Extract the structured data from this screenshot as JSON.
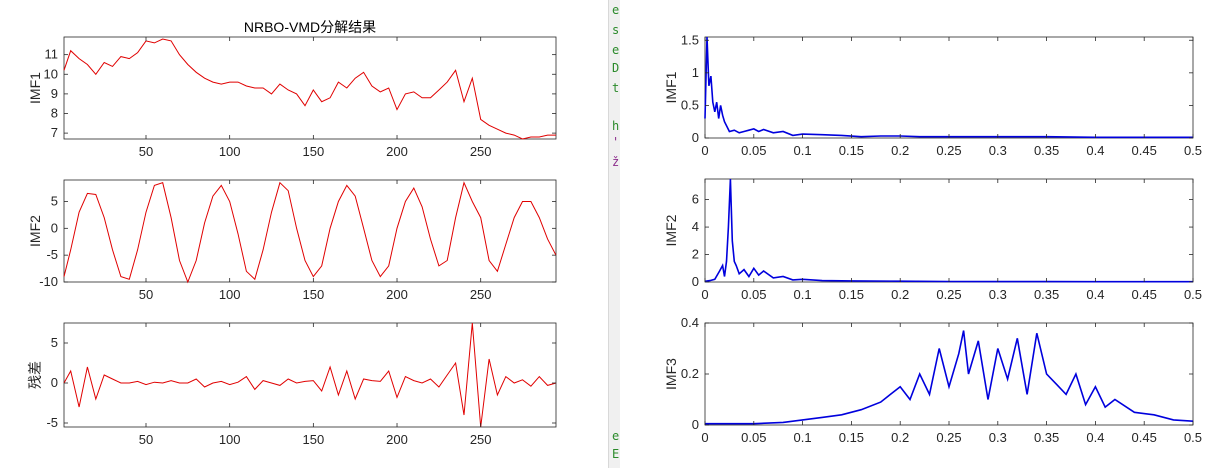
{
  "left_window": {
    "title": "NRBO-VMD分解结果",
    "panels": [
      {
        "ylabel": "IMF1",
        "yticks": [
          "7",
          "8",
          "9",
          "10",
          "11"
        ],
        "xticks": [
          "50",
          "100",
          "150",
          "200",
          "250"
        ]
      },
      {
        "ylabel": "IMF2",
        "yticks": [
          "-10",
          "-5",
          "0",
          "5"
        ],
        "xticks": [
          "50",
          "100",
          "150",
          "200",
          "250"
        ]
      },
      {
        "ylabel": "残差",
        "yticks": [
          "-5",
          "0",
          "5"
        ],
        "xticks": [
          "50",
          "100",
          "150",
          "200",
          "250"
        ]
      }
    ]
  },
  "right_window": {
    "panels": [
      {
        "ylabel": "IMF1",
        "yticks": [
          "0",
          "0.5",
          "1",
          "1.5"
        ],
        "xticks": [
          "0",
          "0.05",
          "0.1",
          "0.15",
          "0.2",
          "0.25",
          "0.3",
          "0.35",
          "0.4",
          "0.45",
          "0.5"
        ]
      },
      {
        "ylabel": "IMF2",
        "yticks": [
          "0",
          "2",
          "4",
          "6"
        ],
        "xticks": [
          "0",
          "0.05",
          "0.1",
          "0.15",
          "0.2",
          "0.25",
          "0.3",
          "0.35",
          "0.4",
          "0.45",
          "0.5"
        ]
      },
      {
        "ylabel": "IMF3",
        "yticks": [
          "0",
          "0.2",
          "0.4"
        ],
        "xticks": [
          "0",
          "0.05",
          "0.1",
          "0.15",
          "0.2",
          "0.25",
          "0.3",
          "0.35",
          "0.4",
          "0.45",
          "0.5"
        ]
      }
    ]
  },
  "background_window_glyphs": [
    "e",
    "s",
    "e",
    "D",
    "t",
    "h",
    "'",
    "ž",
    "e",
    "E"
  ],
  "chart_data": [
    {
      "type": "line",
      "title": "NRBO-VMD分解结果",
      "ylabel": "IMF1",
      "color": "#e00000",
      "xlim": [
        1,
        295
      ],
      "ylim": [
        6.7,
        11.9
      ],
      "x": [
        1,
        5,
        10,
        15,
        20,
        25,
        30,
        35,
        40,
        45,
        50,
        55,
        60,
        65,
        70,
        75,
        80,
        85,
        90,
        95,
        100,
        105,
        110,
        115,
        120,
        125,
        130,
        135,
        140,
        145,
        150,
        155,
        160,
        165,
        170,
        175,
        180,
        185,
        190,
        195,
        200,
        205,
        210,
        215,
        220,
        225,
        230,
        235,
        240,
        245,
        250,
        255,
        260,
        265,
        270,
        275,
        280,
        285,
        290,
        295
      ],
      "y": [
        10.2,
        11.2,
        10.8,
        10.5,
        10.0,
        10.6,
        10.4,
        10.9,
        10.8,
        11.1,
        11.7,
        11.6,
        11.8,
        11.7,
        11.0,
        10.5,
        10.1,
        9.8,
        9.6,
        9.5,
        9.6,
        9.6,
        9.4,
        9.3,
        9.3,
        9.0,
        9.5,
        9.2,
        9.0,
        8.4,
        9.2,
        8.6,
        8.8,
        9.6,
        9.3,
        9.8,
        10.1,
        9.4,
        9.1,
        9.3,
        8.2,
        9.0,
        9.1,
        8.8,
        8.8,
        9.2,
        9.6,
        10.2,
        8.6,
        9.8,
        7.7,
        7.4,
        7.2,
        7.0,
        6.9,
        6.7,
        6.8,
        6.8,
        6.9,
        6.9
      ]
    },
    {
      "type": "line",
      "ylabel": "IMF2",
      "color": "#e00000",
      "xlim": [
        1,
        295
      ],
      "ylim": [
        -10,
        9
      ],
      "x": [
        1,
        5,
        10,
        15,
        20,
        25,
        30,
        35,
        40,
        45,
        50,
        55,
        60,
        65,
        70,
        75,
        80,
        85,
        90,
        95,
        100,
        105,
        110,
        115,
        120,
        125,
        130,
        135,
        140,
        145,
        150,
        155,
        160,
        165,
        170,
        175,
        180,
        185,
        190,
        195,
        200,
        205,
        210,
        215,
        220,
        225,
        230,
        235,
        240,
        245,
        250,
        255,
        260,
        265,
        270,
        275,
        280,
        285,
        290,
        295
      ],
      "y": [
        -9,
        -4,
        3,
        6.5,
        6.3,
        2,
        -4,
        -9,
        -9.5,
        -4,
        3,
        8,
        8.5,
        2,
        -6,
        -10,
        -6,
        1,
        6,
        8,
        5,
        -1,
        -8,
        -9.5,
        -4,
        3,
        8.5,
        7,
        0,
        -6,
        -9,
        -7,
        0,
        5,
        8,
        6,
        0,
        -6,
        -9,
        -7,
        0,
        5,
        7.5,
        4,
        -2,
        -7,
        -6,
        2,
        8.5,
        5,
        2,
        -6,
        -8,
        -3,
        2,
        5,
        5,
        2,
        -2,
        -5
      ]
    },
    {
      "type": "line",
      "ylabel": "残差",
      "color": "#e00000",
      "xlim": [
        1,
        295
      ],
      "ylim": [
        -5.5,
        7.5
      ],
      "x": [
        1,
        5,
        10,
        15,
        20,
        25,
        30,
        35,
        40,
        45,
        50,
        55,
        60,
        65,
        70,
        75,
        80,
        85,
        90,
        95,
        100,
        105,
        110,
        115,
        120,
        125,
        130,
        135,
        140,
        145,
        150,
        155,
        160,
        165,
        170,
        175,
        180,
        185,
        190,
        195,
        200,
        205,
        210,
        215,
        220,
        225,
        230,
        235,
        240,
        245,
        250,
        255,
        260,
        265,
        270,
        275,
        280,
        285,
        290,
        295
      ],
      "y": [
        0,
        1.5,
        -3,
        2,
        -2,
        1,
        0.5,
        0,
        0,
        0.2,
        -0.2,
        0.1,
        0,
        0.3,
        0,
        0,
        0.5,
        -0.5,
        0,
        0.2,
        -0.2,
        0.1,
        0.8,
        -0.8,
        0.3,
        0,
        -0.3,
        0.5,
        0,
        0.2,
        0.3,
        -1,
        2,
        -1.5,
        1.5,
        -2,
        0.5,
        0.3,
        0.2,
        1.5,
        -1.8,
        0.8,
        0.3,
        0,
        0.5,
        -0.5,
        1,
        2.5,
        -4,
        7.5,
        -5.5,
        3,
        -1.5,
        0.8,
        0,
        0.4,
        -0.4,
        0.8,
        -0.3,
        0
      ]
    },
    {
      "type": "line",
      "ylabel": "IMF1",
      "color": "#0000dd",
      "xlim": [
        0,
        0.5
      ],
      "ylim": [
        0,
        1.55
      ],
      "x": [
        0,
        0.002,
        0.004,
        0.006,
        0.008,
        0.01,
        0.012,
        0.014,
        0.016,
        0.018,
        0.02,
        0.025,
        0.03,
        0.035,
        0.04,
        0.045,
        0.05,
        0.055,
        0.06,
        0.07,
        0.08,
        0.09,
        0.1,
        0.12,
        0.14,
        0.16,
        0.18,
        0.2,
        0.22,
        0.25,
        0.3,
        0.35,
        0.4,
        0.45,
        0.5
      ],
      "y": [
        0.3,
        1.55,
        0.8,
        0.95,
        0.55,
        0.4,
        0.55,
        0.3,
        0.5,
        0.35,
        0.25,
        0.1,
        0.12,
        0.08,
        0.1,
        0.12,
        0.14,
        0.1,
        0.13,
        0.08,
        0.1,
        0.04,
        0.06,
        0.05,
        0.04,
        0.02,
        0.03,
        0.03,
        0.02,
        0.02,
        0.02,
        0.02,
        0.01,
        0.01,
        0.01
      ]
    },
    {
      "type": "line",
      "ylabel": "IMF2",
      "color": "#0000dd",
      "xlim": [
        0,
        0.5
      ],
      "ylim": [
        0,
        7.5
      ],
      "x": [
        0,
        0.005,
        0.01,
        0.015,
        0.018,
        0.02,
        0.022,
        0.024,
        0.026,
        0.028,
        0.03,
        0.032,
        0.035,
        0.04,
        0.045,
        0.05,
        0.055,
        0.06,
        0.07,
        0.08,
        0.09,
        0.1,
        0.12,
        0.15,
        0.2,
        0.25,
        0.3,
        0.35,
        0.4,
        0.45,
        0.5
      ],
      "y": [
        0.05,
        0.1,
        0.2,
        0.8,
        1.2,
        0.4,
        1.5,
        4,
        7.5,
        3,
        1.5,
        1.2,
        0.6,
        0.9,
        0.4,
        1,
        0.5,
        0.8,
        0.3,
        0.4,
        0.15,
        0.2,
        0.1,
        0.08,
        0.06,
        0.04,
        0.03,
        0.03,
        0.02,
        0.02,
        0.02
      ]
    },
    {
      "type": "line",
      "ylabel": "IMF3",
      "color": "#0000dd",
      "xlim": [
        0,
        0.5
      ],
      "ylim": [
        0,
        0.4
      ],
      "x": [
        0,
        0.05,
        0.08,
        0.1,
        0.12,
        0.14,
        0.16,
        0.18,
        0.19,
        0.2,
        0.21,
        0.22,
        0.23,
        0.24,
        0.25,
        0.26,
        0.265,
        0.27,
        0.28,
        0.29,
        0.3,
        0.31,
        0.32,
        0.33,
        0.34,
        0.35,
        0.36,
        0.37,
        0.38,
        0.39,
        0.4,
        0.41,
        0.42,
        0.44,
        0.46,
        0.48,
        0.5
      ],
      "y": [
        0.005,
        0.005,
        0.01,
        0.02,
        0.03,
        0.04,
        0.06,
        0.09,
        0.12,
        0.15,
        0.1,
        0.2,
        0.12,
        0.3,
        0.15,
        0.28,
        0.37,
        0.2,
        0.33,
        0.1,
        0.3,
        0.18,
        0.34,
        0.12,
        0.36,
        0.2,
        0.16,
        0.12,
        0.2,
        0.08,
        0.15,
        0.07,
        0.1,
        0.05,
        0.04,
        0.02,
        0.015
      ]
    }
  ]
}
